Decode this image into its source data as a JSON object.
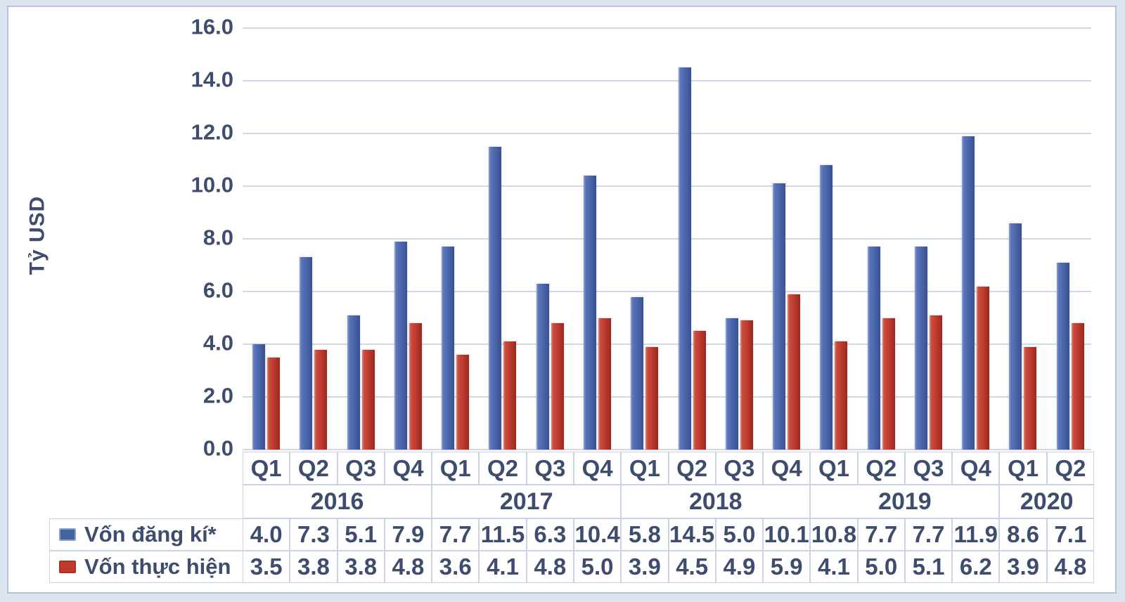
{
  "chart_data": {
    "type": "bar",
    "title": "",
    "ylabel": "Tỷ USD",
    "xlabel": "",
    "ylim": [
      0,
      16
    ],
    "ytick_step": 2,
    "yticks": [
      "16.0",
      "14.0",
      "12.0",
      "10.0",
      "8.0",
      "6.0",
      "4.0",
      "2.0",
      "0.0"
    ],
    "grid": true,
    "legend_position": "bottom-left-table",
    "categories": [
      "Q1",
      "Q2",
      "Q3",
      "Q4",
      "Q1",
      "Q2",
      "Q3",
      "Q4",
      "Q1",
      "Q2",
      "Q3",
      "Q4",
      "Q1",
      "Q2",
      "Q3",
      "Q4",
      "Q1",
      "Q2"
    ],
    "year_groups": [
      {
        "label": "2016",
        "span": 4
      },
      {
        "label": "2017",
        "span": 4
      },
      {
        "label": "2018",
        "span": 4
      },
      {
        "label": "2019",
        "span": 4
      },
      {
        "label": "2020",
        "span": 2
      }
    ],
    "series": [
      {
        "name": "Vốn đăng kí*",
        "color": "#4b67ad",
        "values": [
          4.0,
          7.3,
          5.1,
          7.9,
          7.7,
          11.5,
          6.3,
          10.4,
          5.8,
          14.5,
          5.0,
          10.1,
          10.8,
          7.7,
          7.7,
          11.9,
          8.6,
          7.1
        ]
      },
      {
        "name": "Vốn thực hiện",
        "color": "#c23b31",
        "values": [
          3.5,
          3.8,
          3.8,
          4.8,
          3.6,
          4.1,
          4.8,
          5.0,
          3.9,
          4.5,
          4.9,
          5.9,
          4.1,
          5.0,
          5.1,
          6.2,
          3.9,
          4.8
        ]
      }
    ],
    "colors": {
      "text": "#3e4c6d",
      "gridline": "#cfd9e8",
      "cell_border": "#c9d3e3",
      "background_band": "#dde4f1",
      "card_border": "#b5c2da",
      "bar_blue": "#4b67ad",
      "bar_red": "#c23b31"
    }
  }
}
